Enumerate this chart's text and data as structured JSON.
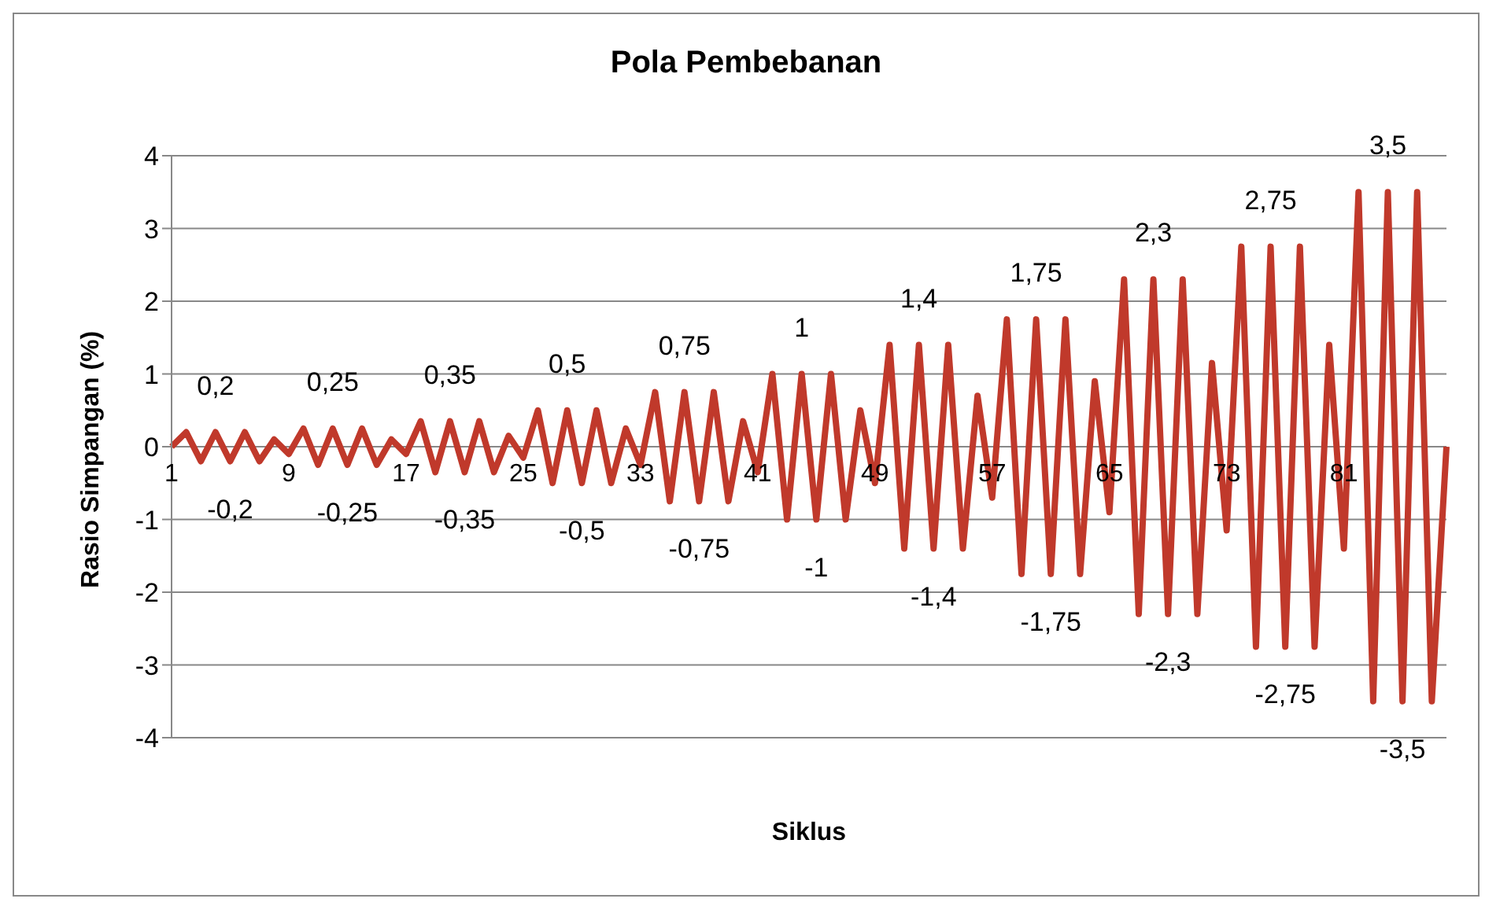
{
  "chart_data": {
    "type": "line",
    "title": "Pola Pembebanan",
    "xlabel": "Siklus",
    "ylabel": "Rasio Simpangan (%)",
    "categories": [
      "1",
      null,
      null,
      null,
      null,
      null,
      null,
      null,
      "9",
      null,
      null,
      null,
      null,
      null,
      null,
      null,
      "17",
      null,
      null,
      null,
      null,
      null,
      null,
      null,
      "25",
      null,
      null,
      null,
      null,
      null,
      null,
      null,
      "33",
      null,
      null,
      null,
      null,
      null,
      null,
      null,
      "41",
      null,
      null,
      null,
      null,
      null,
      null,
      null,
      "49",
      null,
      null,
      null,
      null,
      null,
      null,
      null,
      "57",
      null,
      null,
      null,
      null,
      null,
      null,
      null,
      "65",
      null,
      null,
      null,
      null,
      null,
      null,
      null,
      "73",
      null,
      null,
      null,
      null,
      null,
      null,
      null,
      "81",
      null,
      null,
      null,
      null,
      null,
      null,
      null
    ],
    "series": [
      {
        "color": "#c0392b",
        "values": [
          0,
          0.2,
          -0.2,
          0.2,
          -0.2,
          0.2,
          -0.2,
          0.1,
          -0.1,
          0.25,
          -0.25,
          0.25,
          -0.25,
          0.25,
          -0.25,
          0.1,
          -0.1,
          0.35,
          -0.35,
          0.35,
          -0.35,
          0.35,
          -0.35,
          0.15,
          -0.15,
          0.5,
          -0.5,
          0.5,
          -0.5,
          0.5,
          -0.5,
          0.25,
          -0.25,
          0.75,
          -0.75,
          0.75,
          -0.75,
          0.75,
          -0.75,
          0.35,
          -0.35,
          1,
          -1,
          1,
          -1,
          1,
          -1,
          0.5,
          -0.5,
          1.4,
          -1.4,
          1.4,
          -1.4,
          1.4,
          -1.4,
          0.7,
          -0.7,
          1.75,
          -1.75,
          1.75,
          -1.75,
          1.75,
          -1.75,
          0.9,
          -0.9,
          2.3,
          -2.3,
          2.3,
          -2.3,
          2.3,
          -2.3,
          1.15,
          -1.15,
          2.75,
          -2.75,
          2.75,
          -2.75,
          2.75,
          -2.75,
          1.4,
          -1.4,
          3.5,
          -3.5,
          3.5,
          -3.5,
          3.5,
          -3.5,
          0
        ],
        "value_labels": [
          null,
          null,
          null,
          "0,2",
          "-0,2",
          null,
          null,
          null,
          null,
          null,
          null,
          "0,25",
          "-0,25",
          null,
          null,
          null,
          null,
          null,
          null,
          "0,35",
          "-0,35",
          null,
          null,
          null,
          null,
          null,
          null,
          "0,5",
          "-0,5",
          null,
          null,
          null,
          null,
          null,
          null,
          "0,75",
          "-0,75",
          null,
          null,
          null,
          null,
          null,
          null,
          "1",
          "-1",
          null,
          null,
          null,
          null,
          null,
          null,
          "1,4",
          "-1,4",
          null,
          null,
          null,
          null,
          null,
          null,
          "1,75",
          "-1,75",
          null,
          null,
          null,
          null,
          null,
          null,
          "2,3",
          "-2,3",
          null,
          null,
          null,
          null,
          null,
          null,
          "2,75",
          "-2,75",
          null,
          null,
          null,
          null,
          null,
          null,
          "3,5",
          "-3,5",
          null,
          null,
          null
        ]
      }
    ],
    "ylim": [
      -4,
      4
    ],
    "yticks": [
      -4,
      -3,
      -2,
      -1,
      0,
      1,
      2,
      3,
      4
    ],
    "grid": "y",
    "legend": false,
    "marker": "none",
    "line_style": "solid"
  }
}
